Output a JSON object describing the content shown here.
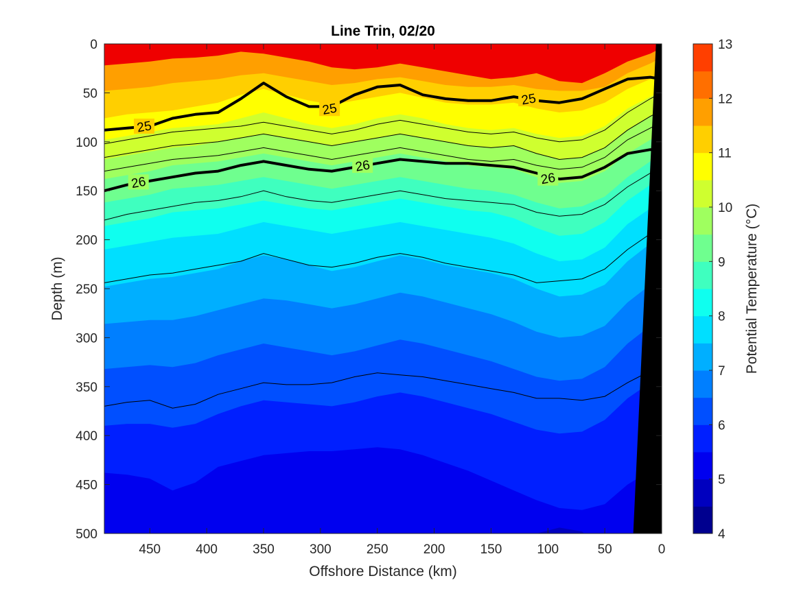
{
  "chart_data": {
    "type": "heatmap",
    "subtype": "filled-contour-section",
    "title": "Line Trin, 02/20",
    "xlabel": "Offshore Distance (km)",
    "ylabel": "Depth (m)",
    "xlim": [
      490,
      0
    ],
    "ylim": [
      500,
      0
    ],
    "x_reversed": true,
    "y_reversed": true,
    "xticks": [
      "450",
      "400",
      "350",
      "300",
      "250",
      "200",
      "150",
      "100",
      "50",
      "0"
    ],
    "yticks": [
      "0",
      "50",
      "100",
      "150",
      "200",
      "250",
      "300",
      "350",
      "400",
      "450",
      "500"
    ],
    "colorbar": {
      "label": "Potential Temperature (°C)",
      "range": [
        4,
        13
      ],
      "ticks": [
        "4",
        "5",
        "6",
        "7",
        "8",
        "9",
        "10",
        "11",
        "12",
        "13"
      ],
      "levels": [
        4,
        4.5,
        5,
        5.5,
        6,
        6.5,
        7,
        7.5,
        8,
        8.5,
        9,
        9.5,
        10,
        10.5,
        11,
        11.5,
        12,
        12.5,
        13
      ],
      "colors": [
        "#00008f",
        "#0000bf",
        "#0000ef",
        "#001fff",
        "#004fff",
        "#007fff",
        "#00afff",
        "#00dfff",
        "#0fffef",
        "#3fffbf",
        "#6fff8f",
        "#9fff5f",
        "#cfff2f",
        "#ffff00",
        "#ffcf00",
        "#ff9f00",
        "#ff6f00",
        "#ff3f00",
        "#ef0000",
        "#bf0000",
        "#8f0000"
      ]
    },
    "contour_x": [
      490,
      470,
      450,
      430,
      410,
      390,
      370,
      350,
      330,
      310,
      290,
      270,
      250,
      230,
      210,
      190,
      170,
      150,
      130,
      110,
      90,
      70,
      50,
      30,
      10,
      0
    ],
    "isotherm_depths": [
      {
        "value": 11.5,
        "y": [
          22,
          20,
          18,
          15,
          14,
          12,
          8,
          10,
          14,
          18,
          24,
          26,
          24,
          20,
          24,
          28,
          32,
          36,
          34,
          30,
          38,
          40,
          30,
          18,
          10,
          4
        ]
      },
      {
        "value": 11,
        "y": [
          48,
          46,
          44,
          40,
          38,
          36,
          32,
          30,
          34,
          38,
          42,
          40,
          36,
          34,
          38,
          42,
          44,
          44,
          42,
          46,
          48,
          48,
          44,
          30,
          20,
          14
        ]
      },
      {
        "value": 10.5,
        "y": [
          76,
          72,
          70,
          68,
          64,
          60,
          52,
          46,
          52,
          58,
          62,
          58,
          54,
          50,
          55,
          60,
          62,
          62,
          60,
          66,
          70,
          68,
          60,
          46,
          36,
          30
        ]
      },
      {
        "value": 10,
        "y": [
          98,
          94,
          90,
          86,
          84,
          82,
          76,
          70,
          76,
          82,
          86,
          82,
          76,
          72,
          76,
          82,
          86,
          88,
          86,
          92,
          96,
          94,
          84,
          66,
          54,
          48
        ]
      },
      {
        "value": 9.5,
        "y": [
          118,
          114,
          110,
          106,
          104,
          100,
          96,
          92,
          96,
          100,
          104,
          100,
          96,
          92,
          96,
          100,
          104,
          106,
          104,
          112,
          118,
          116,
          106,
          88,
          74,
          68
        ]
      },
      {
        "value": 9,
        "y": [
          138,
          134,
          130,
          124,
          122,
          120,
          116,
          112,
          116,
          120,
          124,
          120,
          116,
          112,
          116,
          120,
          124,
          126,
          128,
          136,
          142,
          140,
          130,
          112,
          98,
          92
        ]
      },
      {
        "value": 8.5,
        "y": [
          162,
          158,
          154,
          148,
          146,
          144,
          140,
          136,
          140,
          144,
          148,
          144,
          140,
          136,
          140,
          144,
          148,
          150,
          154,
          162,
          168,
          166,
          156,
          136,
          120,
          112
        ]
      },
      {
        "value": 8,
        "y": [
          186,
          182,
          178,
          172,
          170,
          168,
          164,
          160,
          164,
          168,
          170,
          166,
          162,
          158,
          162,
          166,
          170,
          172,
          178,
          188,
          196,
          194,
          182,
          160,
          144,
          134
        ]
      },
      {
        "value": 7.5,
        "y": [
          210,
          206,
          202,
          198,
          196,
          194,
          188,
          182,
          186,
          190,
          194,
          190,
          186,
          182,
          186,
          190,
          194,
          198,
          204,
          214,
          222,
          220,
          208,
          184,
          168,
          158
        ]
      },
      {
        "value": 7,
        "y": [
          248,
          244,
          240,
          238,
          234,
          230,
          222,
          216,
          220,
          226,
          232,
          228,
          222,
          216,
          220,
          226,
          230,
          234,
          240,
          250,
          258,
          256,
          246,
          222,
          204,
          192
        ]
      },
      {
        "value": 6.5,
        "y": [
          286,
          284,
          282,
          282,
          278,
          272,
          266,
          260,
          262,
          266,
          270,
          266,
          260,
          254,
          258,
          264,
          270,
          276,
          284,
          294,
          300,
          298,
          288,
          264,
          246,
          234
        ]
      },
      {
        "value": 6,
        "y": [
          332,
          330,
          328,
          330,
          326,
          318,
          312,
          306,
          310,
          314,
          318,
          314,
          308,
          302,
          306,
          312,
          318,
          324,
          332,
          340,
          344,
          342,
          330,
          306,
          288,
          276
        ]
      },
      {
        "value": 5.5,
        "y": [
          390,
          388,
          388,
          392,
          388,
          378,
          370,
          364,
          366,
          368,
          370,
          366,
          360,
          356,
          360,
          366,
          372,
          378,
          386,
          394,
          398,
          396,
          384,
          362,
          346,
          334
        ]
      },
      {
        "value": 5,
        "y": [
          438,
          440,
          444,
          456,
          448,
          432,
          426,
          420,
          418,
          416,
          416,
          414,
          412,
          414,
          420,
          428,
          436,
          446,
          456,
          466,
          474,
          476,
          470,
          450,
          436,
          426
        ]
      },
      {
        "value": 4.5,
        "y": [
          520,
          520,
          520,
          520,
          520,
          520,
          520,
          520,
          520,
          520,
          520,
          520,
          520,
          520,
          520,
          520,
          520,
          520,
          520,
          500,
          494,
          498,
          520,
          520,
          520,
          520
        ]
      }
    ],
    "thin_contours": [
      {
        "y": [
          102,
          98,
          94,
          90,
          88,
          86,
          84,
          80,
          84,
          88,
          92,
          88,
          82,
          78,
          82,
          86,
          90,
          92,
          90,
          96,
          100,
          98,
          88,
          70,
          56,
          50
        ]
      },
      {
        "y": [
          116,
          112,
          108,
          104,
          102,
          100,
          96,
          92,
          96,
          100,
          104,
          100,
          96,
          92,
          96,
          100,
          104,
          106,
          104,
          112,
          118,
          116,
          106,
          88,
          74,
          68
        ]
      },
      {
        "y": [
          130,
          126,
          122,
          118,
          116,
          114,
          110,
          106,
          110,
          114,
          118,
          114,
          110,
          106,
          110,
          114,
          118,
          120,
          118,
          124,
          128,
          126,
          116,
          98,
          86,
          80
        ]
      },
      {
        "y": [
          180,
          174,
          170,
          166,
          162,
          160,
          156,
          150,
          156,
          160,
          162,
          158,
          154,
          150,
          154,
          158,
          160,
          162,
          164,
          172,
          176,
          174,
          164,
          146,
          132,
          124
        ]
      },
      {
        "y": [
          244,
          240,
          236,
          234,
          230,
          226,
          222,
          214,
          220,
          226,
          228,
          224,
          218,
          214,
          218,
          224,
          228,
          232,
          236,
          244,
          242,
          240,
          230,
          210,
          194,
          184
        ]
      },
      {
        "y": [
          370,
          366,
          364,
          372,
          368,
          358,
          352,
          346,
          348,
          348,
          346,
          340,
          336,
          338,
          340,
          344,
          348,
          352,
          356,
          362,
          362,
          364,
          360,
          346,
          334,
          328
        ]
      }
    ],
    "labeled_contours": [
      {
        "label": "25",
        "y": [
          88,
          86,
          84,
          76,
          72,
          70,
          56,
          40,
          54,
          64,
          64,
          52,
          44,
          42,
          52,
          56,
          58,
          58,
          54,
          58,
          60,
          56,
          46,
          36,
          34,
          36
        ]
      },
      {
        "label": "26",
        "y": [
          150,
          144,
          140,
          136,
          132,
          130,
          124,
          120,
          124,
          128,
          130,
          126,
          122,
          118,
          120,
          122,
          122,
          124,
          126,
          132,
          138,
          136,
          126,
          112,
          108,
          108
        ]
      }
    ],
    "contour_label_positions": [
      {
        "label": "25",
        "x": 455,
        "y": 84
      },
      {
        "label": "25",
        "x": 292,
        "y": 66
      },
      {
        "label": "25",
        "x": 117,
        "y": 56
      },
      {
        "label": "26",
        "x": 460,
        "y": 141
      },
      {
        "label": "26",
        "x": 263,
        "y": 124
      },
      {
        "label": "26",
        "x": 100,
        "y": 137
      }
    ],
    "bathymetry": {
      "color": "#000000",
      "bottom_depth_km": [
        [
          25,
          500
        ],
        [
          5,
          0
        ],
        [
          0,
          0
        ],
        [
          0,
          500
        ]
      ]
    }
  }
}
